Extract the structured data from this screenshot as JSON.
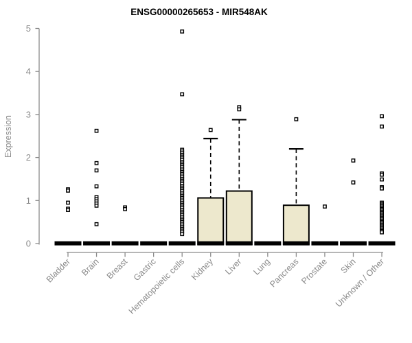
{
  "chart_data": {
    "type": "boxplot",
    "title": "ENSG00000265653 - MIR548AK",
    "ylabel": "Expression",
    "xlabel": "",
    "ylim": [
      0,
      5
    ],
    "yticks": [
      0,
      1,
      2,
      3,
      4,
      5
    ],
    "grid": false,
    "legend": null,
    "colors": {
      "box_fill": "#EDE8CD",
      "box_stroke": "#000000",
      "median_bar": "#000000",
      "axis": "#8a8a8a",
      "outlier_stroke": "#000000",
      "outlier_fill": "#ffffff",
      "title": "#000000",
      "background": "#ffffff"
    },
    "categories": [
      "Bladder",
      "Brain",
      "Breast",
      "Gastric",
      "Hematopoietic cells",
      "Kidney",
      "Liver",
      "Lung",
      "Pancreas",
      "Prostate",
      "Skin",
      "Unknown / Other"
    ],
    "series": [
      {
        "category": "Bladder",
        "median": 0,
        "q1": 0,
        "q3": 0,
        "whisker_low": 0,
        "whisker_high": 0,
        "outliers": [
          1.26,
          1.23,
          0.95,
          0.81,
          0.78
        ]
      },
      {
        "category": "Brain",
        "median": 0,
        "q1": 0,
        "q3": 0,
        "whisker_low": 0,
        "whisker_high": 0,
        "outliers": [
          2.62,
          1.87,
          1.7,
          1.33,
          1.08,
          1.03,
          0.98,
          0.93,
          0.88,
          0.45
        ]
      },
      {
        "category": "Breast",
        "median": 0,
        "q1": 0,
        "q3": 0,
        "whisker_low": 0,
        "whisker_high": 0,
        "outliers": [
          0.84,
          0.8
        ]
      },
      {
        "category": "Gastric",
        "median": 0,
        "q1": 0,
        "q3": 0,
        "whisker_low": 0,
        "whisker_high": 0,
        "outliers": []
      },
      {
        "category": "Hematopoietic cells",
        "median": 0,
        "q1": 0,
        "q3": 0,
        "whisker_low": 0,
        "whisker_high": 0,
        "outliers": [
          4.93,
          3.47,
          2.18,
          2.14,
          2.1,
          2.06,
          2.02,
          1.98,
          1.94,
          1.9,
          1.86,
          1.82,
          1.78,
          1.74,
          1.7,
          1.66,
          1.62,
          1.58,
          1.54,
          1.5,
          1.46,
          1.42,
          1.38,
          1.34,
          1.3,
          1.26,
          1.22,
          1.18,
          1.14,
          1.1,
          1.06,
          1.02,
          0.98,
          0.94,
          0.9,
          0.86,
          0.82,
          0.78,
          0.74,
          0.7,
          0.66,
          0.62,
          0.58,
          0.54,
          0.5,
          0.46,
          0.42,
          0.38,
          0.34,
          0.3,
          0.26,
          0.22
        ]
      },
      {
        "category": "Kidney",
        "median": 0,
        "q1": 0,
        "q3": 1.06,
        "whisker_low": 0,
        "whisker_high": 2.44,
        "outliers": [
          2.64
        ]
      },
      {
        "category": "Liver",
        "median": 0,
        "q1": 0,
        "q3": 1.22,
        "whisker_low": 0,
        "whisker_high": 2.88,
        "outliers": [
          3.17,
          3.12
        ]
      },
      {
        "category": "Lung",
        "median": 0,
        "q1": 0,
        "q3": 0,
        "whisker_low": 0,
        "whisker_high": 0,
        "outliers": []
      },
      {
        "category": "Pancreas",
        "median": 0,
        "q1": 0,
        "q3": 0.89,
        "whisker_low": 0,
        "whisker_high": 2.2,
        "outliers": [
          2.89
        ]
      },
      {
        "category": "Prostate",
        "median": 0,
        "q1": 0,
        "q3": 0,
        "whisker_low": 0,
        "whisker_high": 0,
        "outliers": [
          0.86
        ]
      },
      {
        "category": "Skin",
        "median": 0,
        "q1": 0,
        "q3": 0,
        "whisker_low": 0,
        "whisker_high": 0,
        "outliers": [
          1.93,
          1.42
        ]
      },
      {
        "category": "Unknown / Other",
        "median": 0,
        "q1": 0,
        "q3": 0,
        "whisker_low": 0,
        "whisker_high": 0,
        "outliers": [
          2.96,
          2.72,
          1.63,
          1.6,
          1.49,
          1.31,
          1.28,
          0.95,
          0.92,
          0.89,
          0.86,
          0.83,
          0.8,
          0.77,
          0.74,
          0.71,
          0.68,
          0.65,
          0.62,
          0.59,
          0.56,
          0.53,
          0.5,
          0.47,
          0.44,
          0.41,
          0.38,
          0.35,
          0.32,
          0.29,
          0.26
        ]
      }
    ]
  }
}
